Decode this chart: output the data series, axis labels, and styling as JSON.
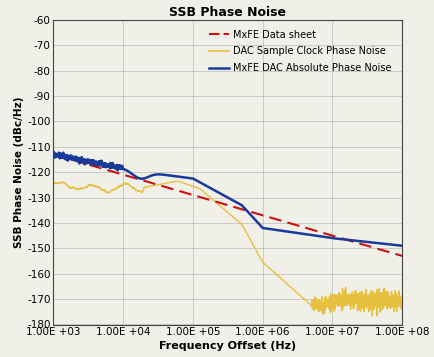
{
  "title": "SSB Phase Noise",
  "xlabel": "Frequency Offset (Hz)",
  "ylabel": "SSB Phase Noise (dBc/Hz)",
  "xlim": [
    1000,
    100000000
  ],
  "ylim": [
    -180,
    -60
  ],
  "yticks": [
    -180,
    -170,
    -160,
    -150,
    -140,
    -130,
    -120,
    -110,
    -100,
    -90,
    -80,
    -70,
    -60
  ],
  "xtick_labels": [
    "1.00E +03",
    "1.00E +04",
    "1.00E +05",
    "1.00E +06",
    "1.00E +07",
    "1.00E +08"
  ],
  "legend": [
    {
      "label": "MxFE Data sheet",
      "color": "#cc1111",
      "linestyle": "dashed",
      "linewidth": 1.5
    },
    {
      "label": "DAC Sample Clock Phase Noise",
      "color": "#e8c040",
      "linestyle": "solid",
      "linewidth": 1.0
    },
    {
      "label": "MxFE DAC Absolute Phase Noise",
      "color": "#1a3a9a",
      "linestyle": "solid",
      "linewidth": 1.8
    }
  ],
  "bg_color": "#f0f0e8",
  "grid_color": "#999999",
  "title_fontsize": 9,
  "label_fontsize": 8,
  "tick_fontsize": 7.5
}
